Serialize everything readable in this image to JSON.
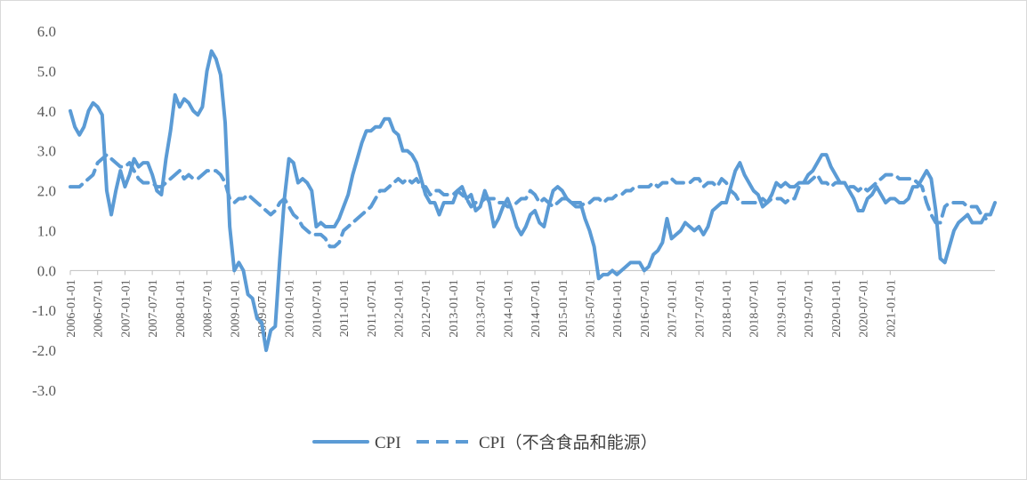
{
  "chart_data": {
    "type": "line",
    "title": "",
    "xlabel": "",
    "ylabel": "",
    "ylim": [
      -3.0,
      6.0
    ],
    "yticks": [
      "6.0",
      "5.0",
      "4.0",
      "3.0",
      "2.0",
      "1.0",
      "0.0",
      "-1.0",
      "-2.0",
      "-3.0"
    ],
    "xticks": [
      "2006-01-01",
      "2006-07-01",
      "2007-01-01",
      "2007-07-01",
      "2008-01-01",
      "2008-07-01",
      "2009-01-01",
      "2009-07-01",
      "2010-01-01",
      "2010-07-01",
      "2011-01-01",
      "2011-07-01",
      "2012-01-01",
      "2012-07-01",
      "2013-01-01",
      "2013-07-01",
      "2014-01-01",
      "2014-07-01",
      "2015-01-01",
      "2015-07-01",
      "2016-01-01",
      "2016-07-01",
      "2017-01-01",
      "2017-07-01",
      "2018-01-01",
      "2018-07-01",
      "2019-01-01",
      "2019-07-01",
      "2020-01-01",
      "2020-07-01",
      "2021-01-01"
    ],
    "x_start": "2006-01",
    "x_frequency": "monthly",
    "grid": false,
    "legend_position": "bottom",
    "color": "#5b9bd5",
    "series": [
      {
        "name": "CPI",
        "style": "solid",
        "values": [
          4.0,
          3.6,
          3.4,
          3.6,
          4.0,
          4.2,
          4.1,
          3.9,
          2.0,
          1.4,
          2.0,
          2.5,
          2.1,
          2.4,
          2.8,
          2.6,
          2.7,
          2.7,
          2.4,
          2.0,
          1.9,
          2.8,
          3.5,
          4.4,
          4.1,
          4.3,
          4.2,
          4.0,
          3.9,
          4.1,
          5.0,
          5.5,
          5.3,
          4.9,
          3.7,
          1.1,
          0.0,
          0.2,
          0.0,
          -0.6,
          -0.7,
          -1.2,
          -1.3,
          -2.0,
          -1.5,
          -1.4,
          0.3,
          1.8,
          2.8,
          2.7,
          2.2,
          2.3,
          2.2,
          2.0,
          1.1,
          1.2,
          1.1,
          1.1,
          1.1,
          1.3,
          1.6,
          1.9,
          2.4,
          2.8,
          3.2,
          3.5,
          3.5,
          3.6,
          3.6,
          3.8,
          3.8,
          3.5,
          3.4,
          3.0,
          3.0,
          2.9,
          2.7,
          2.3,
          1.9,
          1.7,
          1.7,
          1.4,
          1.7,
          1.7,
          1.7,
          2.0,
          2.1,
          1.8,
          1.9,
          1.5,
          1.6,
          2.0,
          1.7,
          1.1,
          1.3,
          1.6,
          1.8,
          1.5,
          1.1,
          0.9,
          1.1,
          1.4,
          1.5,
          1.2,
          1.1,
          1.6,
          2.0,
          2.1,
          2.0,
          1.8,
          1.7,
          1.7,
          1.7,
          1.3,
          1.0,
          0.6,
          -0.2,
          -0.1,
          -0.1,
          0.0,
          -0.1,
          0.0,
          0.1,
          0.2,
          0.2,
          0.2,
          0.0,
          0.1,
          0.4,
          0.5,
          0.7,
          1.3,
          0.8,
          0.9,
          1.0,
          1.2,
          1.1,
          1.0,
          1.1,
          0.9,
          1.1,
          1.5,
          1.6,
          1.7,
          1.7,
          2.1,
          2.5,
          2.7,
          2.4,
          2.2,
          2.0,
          1.9,
          1.6,
          1.7,
          1.9,
          2.2,
          2.1,
          2.2,
          2.1,
          2.1,
          2.2,
          2.2,
          2.4,
          2.5,
          2.7,
          2.9,
          2.9,
          2.6,
          2.4,
          2.2,
          2.2,
          2.0,
          1.8,
          1.5,
          1.5,
          1.8,
          1.9,
          2.1,
          1.9,
          1.7,
          1.8,
          1.8,
          1.7,
          1.7,
          1.8,
          2.1,
          2.1,
          2.3,
          2.5,
          2.3,
          1.5,
          0.3,
          0.2,
          0.6,
          1.0,
          1.2,
          1.3,
          1.4,
          1.2,
          1.2,
          1.2,
          1.4,
          1.4,
          1.7
        ]
      },
      {
        "name": "CPI（不含食品和能源）",
        "style": "dashed",
        "values": [
          2.1,
          2.1,
          2.1,
          2.2,
          2.3,
          2.4,
          2.7,
          2.8,
          2.9,
          2.8,
          2.7,
          2.6,
          2.6,
          2.7,
          2.5,
          2.3,
          2.2,
          2.2,
          2.2,
          2.1,
          2.1,
          2.2,
          2.3,
          2.4,
          2.5,
          2.3,
          2.4,
          2.3,
          2.3,
          2.4,
          2.5,
          2.5,
          2.5,
          2.4,
          2.2,
          1.8,
          1.7,
          1.8,
          1.8,
          1.9,
          1.8,
          1.7,
          1.6,
          1.5,
          1.4,
          1.5,
          1.7,
          1.8,
          1.6,
          1.4,
          1.3,
          1.1,
          1.0,
          0.9,
          0.9,
          0.9,
          0.8,
          0.6,
          0.6,
          0.7,
          1.0,
          1.1,
          1.2,
          1.3,
          1.4,
          1.5,
          1.6,
          1.8,
          2.0,
          2.0,
          2.1,
          2.2,
          2.3,
          2.2,
          2.3,
          2.2,
          2.3,
          2.1,
          2.1,
          1.9,
          2.0,
          2.0,
          1.9,
          1.9,
          1.9,
          2.0,
          1.9,
          1.8,
          1.6,
          1.7,
          1.7,
          1.8,
          1.8,
          1.8,
          1.7,
          1.7,
          1.6,
          1.6,
          1.7,
          1.8,
          1.8,
          2.0,
          1.9,
          1.7,
          1.8,
          1.7,
          1.6,
          1.7,
          1.8,
          1.8,
          1.7,
          1.6,
          1.6,
          1.7,
          1.7,
          1.8,
          1.8,
          1.7,
          1.8,
          1.8,
          1.9,
          1.9,
          2.0,
          2.0,
          2.1,
          2.1,
          2.1,
          2.1,
          2.2,
          2.1,
          2.2,
          2.2,
          2.3,
          2.2,
          2.2,
          2.2,
          2.2,
          2.3,
          2.3,
          2.1,
          2.2,
          2.2,
          2.1,
          2.3,
          2.2,
          2.0,
          1.9,
          1.7,
          1.7,
          1.7,
          1.7,
          1.7,
          1.8,
          1.7,
          1.8,
          1.8,
          1.8,
          1.7,
          1.8,
          1.8,
          2.1,
          2.2,
          2.2,
          2.3,
          2.4,
          2.2,
          2.2,
          2.1,
          2.2,
          2.2,
          2.2,
          2.1,
          2.1,
          2.0,
          2.1,
          2.0,
          2.1,
          2.2,
          2.3,
          2.4,
          2.4,
          2.4,
          2.3,
          2.3,
          2.3,
          2.3,
          2.2,
          2.1,
          1.7,
          1.4,
          1.2,
          1.2,
          1.6,
          1.7,
          1.7,
          1.7,
          1.7,
          1.6,
          1.6,
          1.6,
          1.4,
          1.3
        ]
      }
    ]
  }
}
